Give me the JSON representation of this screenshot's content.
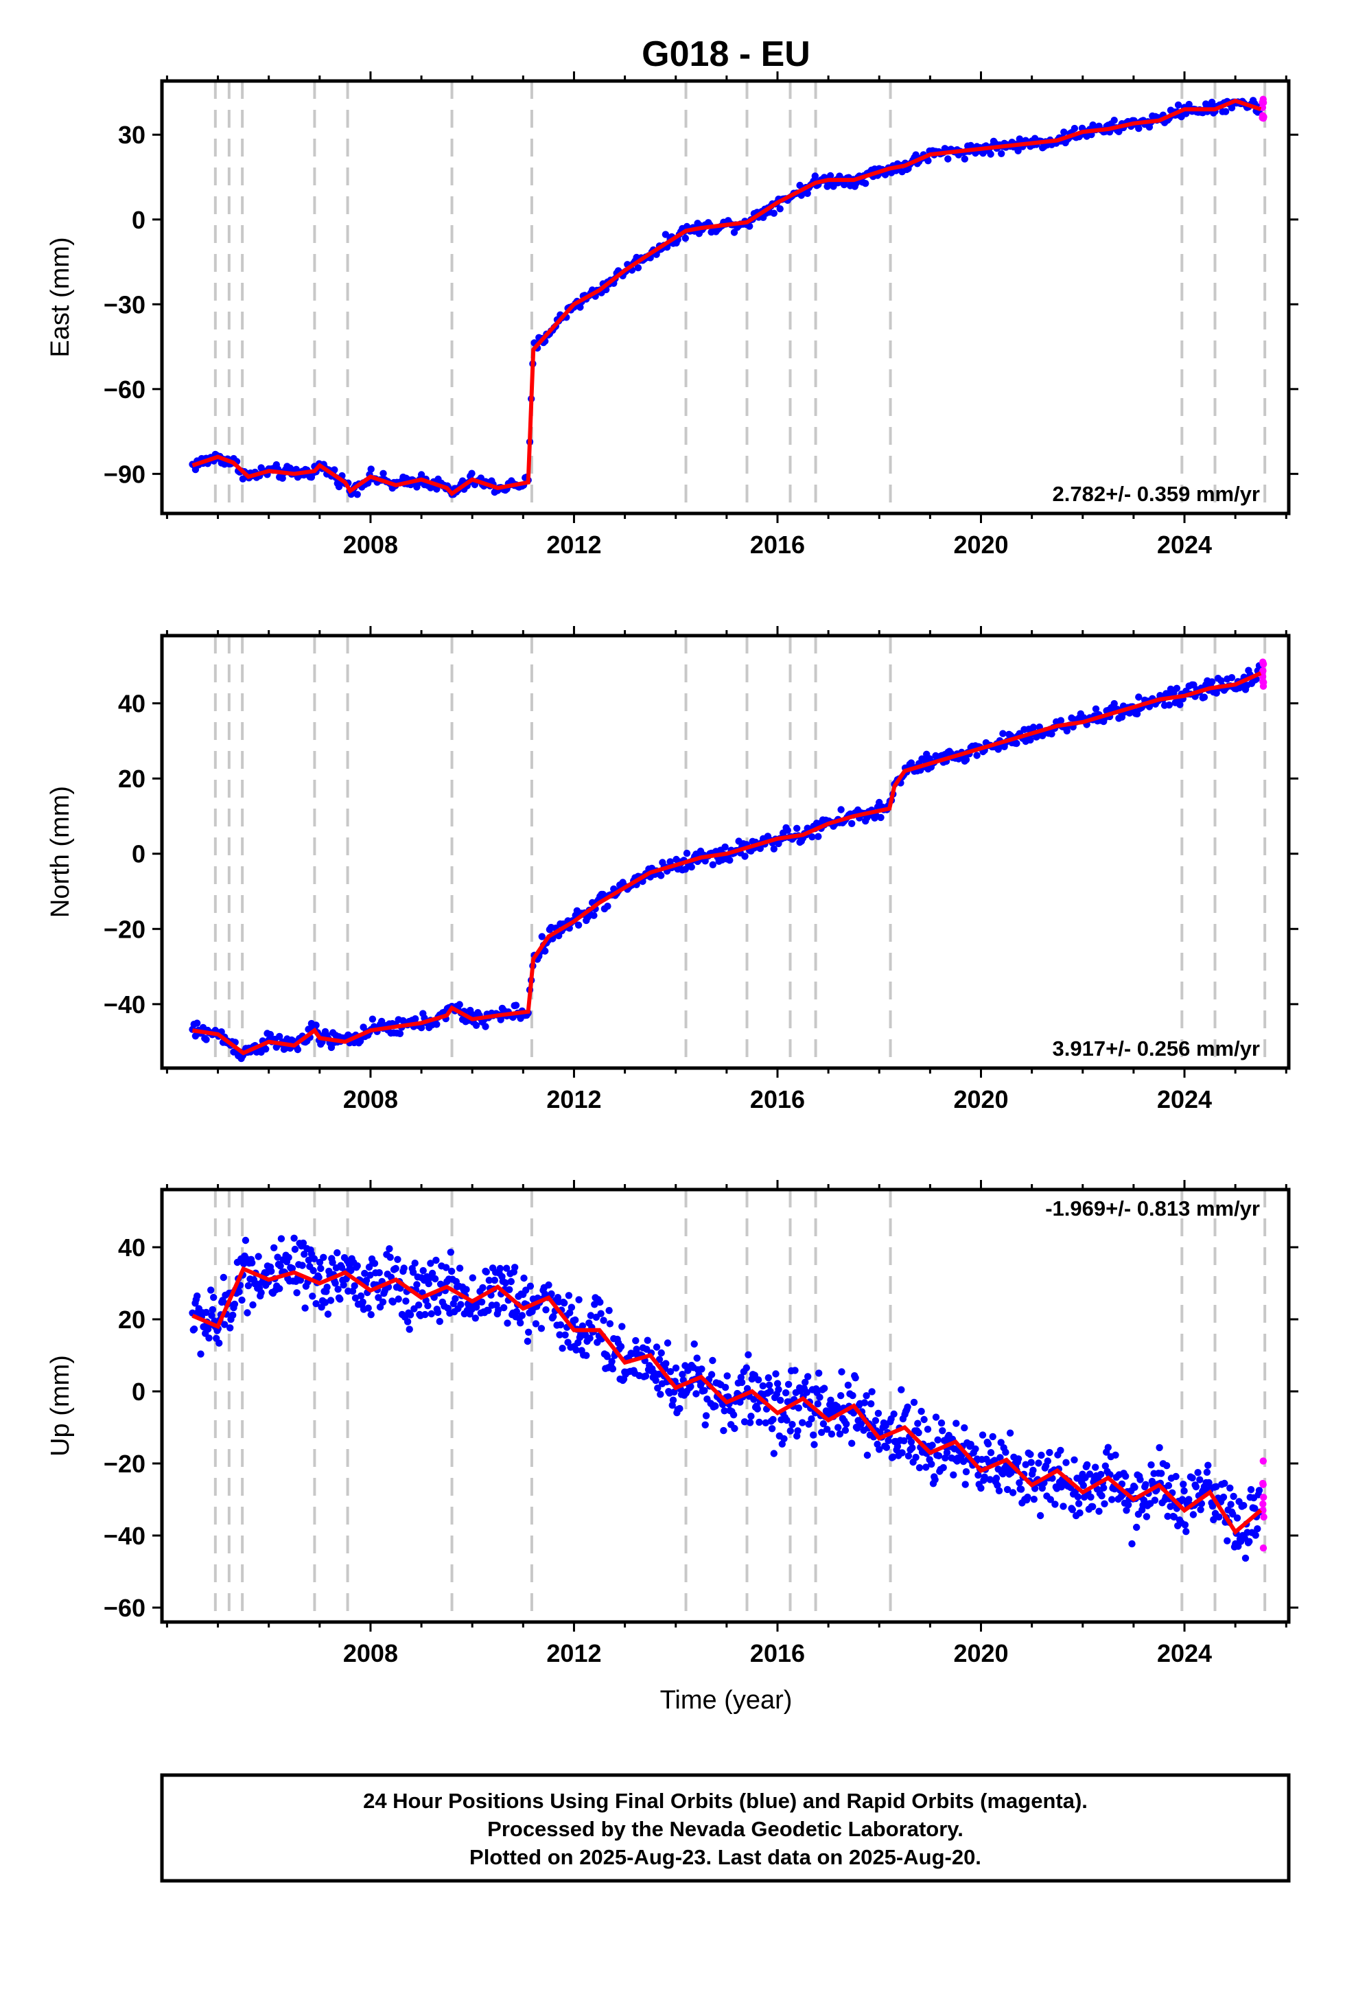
{
  "title": "G018 - EU",
  "colors": {
    "final": "#0000ff",
    "rapid": "#ff00ff",
    "model": "#ff0000",
    "events": "#c8c8c8"
  },
  "event_years": [
    2004.95,
    2005.22,
    2005.48,
    2006.9,
    2007.55,
    2009.6,
    2011.17,
    2014.2,
    2015.4,
    2016.25,
    2016.75,
    2018.22,
    2023.95,
    2024.6,
    2025.58
  ],
  "chart_data": [
    {
      "type": "scatter",
      "ylabel": "East (mm)",
      "xlabel": "",
      "xlim": [
        2003.9,
        2026.05
      ],
      "ylim": [
        -104,
        49
      ],
      "xticks": [
        2008,
        2012,
        2016,
        2020,
        2024
      ],
      "yticks": [
        -90,
        -60,
        -30,
        0,
        30
      ],
      "tick_labels": [
        "−90",
        "−60",
        "−30",
        "0",
        "30"
      ],
      "rate_text": "2.782+/- 0.359 mm/yr",
      "rate_position": "bottom-right",
      "series": [
        {
          "x": [
            2004.5,
            2005.0,
            2005.3,
            2005.6,
            2006.0,
            2006.5,
            2006.9,
            2007.0,
            2007.5,
            2007.6,
            2008.0,
            2008.5,
            2009.0,
            2009.5,
            2009.6,
            2010.0,
            2010.5,
            2011.1,
            2011.2,
            2011.5,
            2012.0,
            2012.5,
            2013.0,
            2013.5,
            2014.2,
            2014.5,
            2015.4,
            2016.0,
            2016.75,
            2017.0,
            2017.5,
            2018.2,
            2018.5,
            2019.0,
            2019.5,
            2020.0,
            2020.5,
            2021.0,
            2021.5,
            2022.0,
            2022.5,
            2023.0,
            2023.5,
            2024.0,
            2024.6,
            2025.0,
            2025.5
          ],
          "values": [
            -87,
            -84,
            -86,
            -91,
            -89,
            -90,
            -89,
            -87,
            -93,
            -96,
            -91,
            -94,
            -92,
            -95,
            -97,
            -92,
            -95,
            -93,
            -46,
            -40,
            -30,
            -25,
            -18,
            -12,
            -4,
            -3,
            -1,
            6,
            13,
            14,
            14,
            18,
            19,
            23,
            24,
            25,
            26,
            27,
            28,
            31,
            32,
            34,
            35,
            39,
            39,
            42,
            39
          ]
        }
      ]
    },
    {
      "type": "scatter",
      "ylabel": "North (mm)",
      "xlabel": "",
      "xlim": [
        2003.9,
        2026.05
      ],
      "ylim": [
        -57,
        58
      ],
      "xticks": [
        2008,
        2012,
        2016,
        2020,
        2024
      ],
      "yticks": [
        -40,
        -20,
        0,
        20,
        40
      ],
      "tick_labels": [
        "−40",
        "−20",
        "0",
        "20",
        "40"
      ],
      "rate_text": "3.917+/- 0.256 mm/yr",
      "rate_position": "bottom-right",
      "series": [
        {
          "x": [
            2004.5,
            2005.0,
            2005.5,
            2006.0,
            2006.5,
            2006.9,
            2007.0,
            2007.5,
            2008.0,
            2008.5,
            2009.0,
            2009.5,
            2009.6,
            2010.0,
            2010.5,
            2011.1,
            2011.2,
            2011.5,
            2012.0,
            2012.5,
            2013.0,
            2013.5,
            2014.0,
            2014.5,
            2015.0,
            2015.5,
            2016.0,
            2016.5,
            2017.0,
            2017.5,
            2018.2,
            2018.3,
            2018.5,
            2019.0,
            2019.5,
            2020.0,
            2020.5,
            2021.0,
            2021.5,
            2022.0,
            2022.5,
            2023.0,
            2023.5,
            2024.0,
            2024.5,
            2025.0,
            2025.5
          ],
          "values": [
            -47,
            -48,
            -53,
            -50,
            -51,
            -47,
            -49,
            -50,
            -47,
            -46,
            -45,
            -43,
            -41,
            -44,
            -43,
            -42,
            -28,
            -22,
            -18,
            -13,
            -9,
            -5,
            -3,
            -1,
            0,
            2,
            4,
            5,
            8,
            10,
            12,
            18,
            22,
            24,
            26,
            28,
            30,
            32,
            34,
            35,
            37,
            39,
            41,
            42,
            44,
            45,
            48
          ]
        }
      ]
    },
    {
      "type": "scatter",
      "ylabel": "Up (mm)",
      "xlabel": "Time (year)",
      "xlim": [
        2003.9,
        2026.05
      ],
      "ylim": [
        -64,
        56
      ],
      "xticks": [
        2008,
        2012,
        2016,
        2020,
        2024
      ],
      "yticks": [
        -60,
        -40,
        -20,
        0,
        20,
        40
      ],
      "tick_labels": [
        "−60",
        "−40",
        "−20",
        "0",
        "20",
        "40"
      ],
      "rate_text": "-1.969+/- 0.813 mm/yr",
      "rate_position": "top-right",
      "series": [
        {
          "x": [
            2004.5,
            2005.0,
            2005.5,
            2006.0,
            2006.5,
            2007.0,
            2007.5,
            2008.0,
            2008.5,
            2009.0,
            2009.5,
            2010.0,
            2010.5,
            2011.0,
            2011.5,
            2012.0,
            2012.5,
            2013.0,
            2013.5,
            2014.0,
            2014.5,
            2015.0,
            2015.5,
            2016.0,
            2016.5,
            2017.0,
            2017.5,
            2018.0,
            2018.5,
            2019.0,
            2019.5,
            2020.0,
            2020.5,
            2021.0,
            2021.5,
            2022.0,
            2022.5,
            2023.0,
            2023.5,
            2024.0,
            2024.5,
            2025.0,
            2025.5
          ],
          "values": [
            21,
            18,
            34,
            31,
            33,
            30,
            33,
            28,
            31,
            26,
            29,
            25,
            29,
            23,
            26,
            17,
            17,
            8,
            10,
            1,
            4,
            -3,
            0,
            -6,
            -2,
            -8,
            -4,
            -13,
            -10,
            -17,
            -14,
            -22,
            -19,
            -26,
            -22,
            -28,
            -24,
            -30,
            -26,
            -33,
            -28,
            -39,
            -33
          ]
        }
      ]
    }
  ],
  "caption": {
    "line1": "24 Hour Positions Using Final Orbits (blue) and Rapid Orbits (magenta).",
    "line2": "Processed by the Nevada Geodetic Laboratory.",
    "line3": "Plotted on 2025-Aug-23. Last data on 2025-Aug-20."
  }
}
